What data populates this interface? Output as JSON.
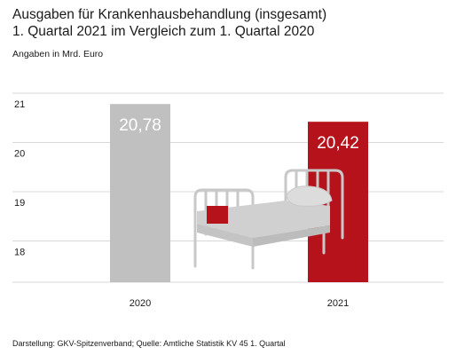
{
  "title_line1": "Ausgaben für Krankenhausbehandlung (insgesamt)",
  "title_line2": "1. Quartal 2021 im Vergleich zum 1. Quartal 2020",
  "unit_label": "Angaben in Mrd. Euro",
  "footer": "Darstellung: GKV-Spitzenverband; Quelle: Amtliche Statistik KV 45 1. Quartal",
  "colors": {
    "bar_2020": "#c0c0c0",
    "bar_2021": "#b5121b",
    "grid": "#d8d8d8",
    "illustration": "#c8c8c8"
  },
  "illustration": "hospital-bed-icon",
  "chart_data": {
    "type": "bar",
    "categories": [
      "2020",
      "2021"
    ],
    "values": [
      20.78,
      20.42
    ],
    "value_labels": [
      "20,78",
      "20,42"
    ],
    "yticks": [
      "21",
      "20",
      "19",
      "18"
    ],
    "ytick_values": [
      21,
      20,
      19,
      18
    ],
    "ylim": [
      17.15,
      21.15
    ],
    "grid": true,
    "legend": false
  }
}
